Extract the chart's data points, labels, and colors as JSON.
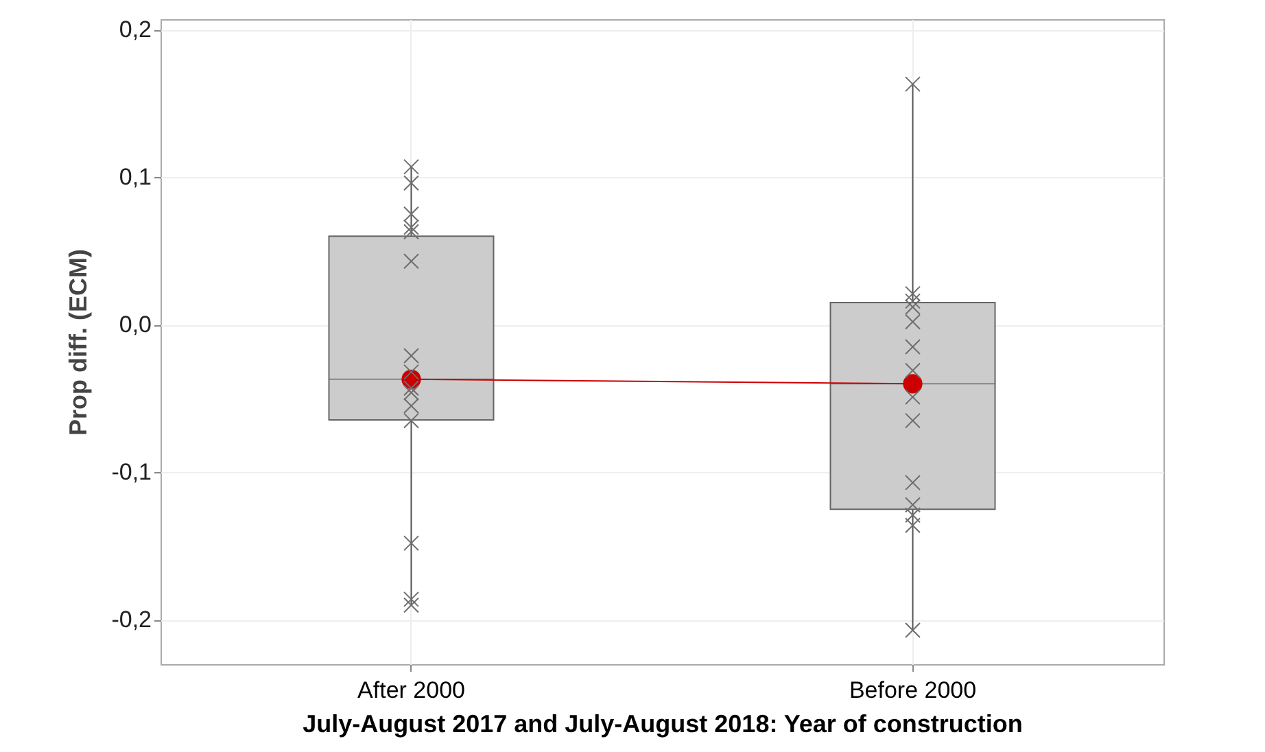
{
  "chart_data": {
    "type": "box",
    "xlabel": "July-August 2017 and July-August 2018: Year of construction",
    "ylabel": "Prop diff. (ECM)",
    "categories": [
      "After 2000",
      "Before 2000"
    ],
    "boxes": [
      {
        "low": -0.19,
        "q1": -0.0645,
        "median": -0.037,
        "q3": 0.06,
        "high": 0.107
      },
      {
        "low": -0.207,
        "q1": -0.125,
        "median": -0.04,
        "q3": 0.015,
        "high": 0.163
      }
    ],
    "color": "#cccccc",
    "series": [
      {
        "type": "scatter",
        "color": "#6e6e6e",
        "marker": "cross",
        "x": [
          "After 2000",
          "After 2000",
          "After 2000",
          "After 2000",
          "After 2000",
          "After 2000",
          "After 2000",
          "After 2000",
          "After 2000",
          "After 2000",
          "After 2000",
          "After 2000",
          "After 2000",
          "After 2000",
          "After 2000",
          "Before 2000",
          "Before 2000",
          "Before 2000",
          "Before 2000",
          "Before 2000",
          "Before 2000",
          "Before 2000",
          "Before 2000",
          "Before 2000",
          "Before 2000",
          "Before 2000",
          "Before 2000",
          "Before 2000",
          "Before 2000"
        ],
        "values": [
          0.107,
          0.096,
          0.075,
          0.066,
          0.063,
          0.043,
          -0.021,
          -0.032,
          -0.043,
          -0.046,
          -0.055,
          -0.065,
          -0.148,
          -0.186,
          -0.19,
          0.163,
          0.021,
          0.016,
          0.012,
          0.002,
          -0.015,
          -0.031,
          -0.049,
          -0.065,
          -0.107,
          -0.122,
          -0.129,
          -0.136,
          -0.207
        ]
      },
      {
        "type": "line",
        "color": "#cc0000",
        "marker": "circle",
        "x": [
          "After 2000",
          "Before 2000"
        ],
        "values": [
          -0.037,
          -0.04
        ]
      }
    ],
    "ylim": [
      -0.23,
      0.207
    ],
    "yticks": [
      {
        "value": -0.2,
        "label": "-0,2"
      },
      {
        "value": -0.1,
        "label": "-0,1"
      },
      {
        "value": 0,
        "label": "0,0"
      },
      {
        "value": 0.1,
        "label": "0,1"
      },
      {
        "value": 0.2,
        "label": "0,2"
      }
    ],
    "grid": true
  }
}
